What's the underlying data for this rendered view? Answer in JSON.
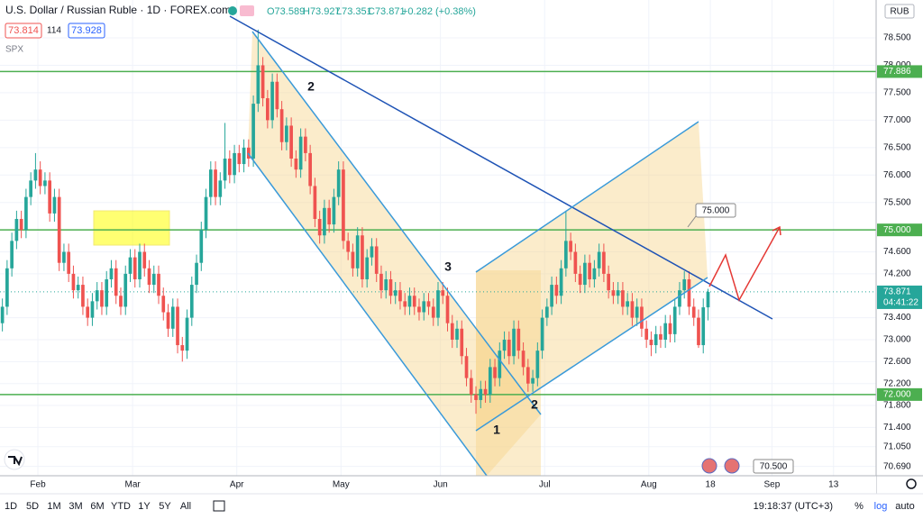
{
  "header": {
    "symbol": "U.S. Dollar / Russian Ruble · 1D · FOREX.com",
    "ohlc": [
      "O73.589",
      "H73.927",
      "L73.351",
      "C73.871"
    ],
    "change": "+0.282 (+0.38%)",
    "bid": "73.814",
    "spread": "114",
    "ask": "73.928",
    "indicator": "SPX"
  },
  "chart_data": {
    "type": "candlestick",
    "ohlc": [
      [
        73.3,
        73.75,
        73.15,
        73.6
      ],
      [
        73.6,
        74.45,
        73.45,
        74.3
      ],
      [
        74.3,
        74.95,
        74.15,
        74.8
      ],
      [
        74.8,
        75.35,
        74.65,
        75.2
      ],
      [
        75.2,
        75.35,
        74.85,
        75.0
      ],
      [
        75.0,
        75.75,
        74.85,
        75.6
      ],
      [
        75.6,
        76.05,
        75.45,
        75.9
      ],
      [
        75.9,
        76.4,
        75.75,
        76.1
      ],
      [
        76.1,
        76.25,
        75.65,
        75.8
      ],
      [
        75.8,
        76.05,
        75.65,
        75.9
      ],
      [
        75.9,
        76.05,
        75.15,
        75.3
      ],
      [
        75.3,
        75.75,
        75.15,
        75.6
      ],
      [
        75.6,
        75.75,
        74.25,
        74.4
      ],
      [
        74.4,
        74.75,
        74.25,
        74.6
      ],
      [
        74.6,
        74.75,
        74.05,
        74.2
      ],
      [
        74.2,
        74.35,
        73.75,
        73.9
      ],
      [
        73.9,
        74.15,
        73.75,
        74.0
      ],
      [
        74.0,
        74.15,
        73.45,
        73.6
      ],
      [
        73.6,
        73.75,
        73.25,
        73.4
      ],
      [
        73.4,
        73.85,
        73.25,
        73.7
      ],
      [
        73.7,
        74.05,
        73.55,
        73.9
      ],
      [
        73.9,
        74.05,
        73.45,
        73.6
      ],
      [
        73.6,
        74.25,
        73.45,
        74.1
      ],
      [
        74.1,
        74.45,
        73.95,
        74.3
      ],
      [
        74.3,
        74.45,
        73.65,
        73.8
      ],
      [
        73.8,
        73.95,
        73.45,
        73.6
      ],
      [
        73.6,
        74.35,
        73.45,
        74.2
      ],
      [
        74.2,
        74.65,
        74.05,
        74.5
      ],
      [
        74.5,
        74.65,
        73.95,
        74.1
      ],
      [
        74.1,
        74.75,
        73.95,
        74.6
      ],
      [
        74.6,
        74.75,
        74.15,
        74.3
      ],
      [
        74.3,
        74.45,
        73.85,
        74.0
      ],
      [
        74.0,
        74.35,
        73.85,
        74.2
      ],
      [
        74.2,
        74.35,
        73.65,
        73.8
      ],
      [
        73.8,
        73.95,
        73.35,
        73.5
      ],
      [
        73.5,
        73.65,
        73.05,
        73.2
      ],
      [
        73.2,
        73.75,
        73.05,
        73.6
      ],
      [
        73.6,
        73.75,
        72.75,
        72.9
      ],
      [
        72.9,
        73.05,
        72.6,
        72.8
      ],
      [
        72.8,
        73.55,
        72.65,
        73.4
      ],
      [
        73.4,
        74.15,
        73.25,
        74.0
      ],
      [
        74.0,
        74.55,
        73.85,
        74.4
      ],
      [
        74.4,
        75.15,
        74.25,
        75.0
      ],
      [
        75.0,
        75.75,
        74.85,
        75.6
      ],
      [
        75.6,
        76.25,
        75.45,
        76.1
      ],
      [
        76.1,
        76.25,
        75.45,
        75.6
      ],
      [
        75.6,
        76.05,
        75.45,
        75.9
      ],
      [
        75.9,
        76.95,
        75.75,
        76.3
      ],
      [
        76.3,
        76.45,
        75.85,
        76.0
      ],
      [
        76.0,
        76.55,
        75.85,
        76.4
      ],
      [
        76.4,
        76.55,
        76.05,
        76.2
      ],
      [
        76.2,
        76.65,
        76.05,
        76.5
      ],
      [
        76.5,
        76.65,
        76.15,
        76.3
      ],
      [
        76.3,
        77.45,
        76.15,
        77.3
      ],
      [
        77.3,
        78.65,
        77.15,
        78.0
      ],
      [
        78.0,
        78.15,
        77.25,
        77.4
      ],
      [
        77.4,
        77.55,
        76.85,
        77.0
      ],
      [
        77.0,
        77.85,
        76.85,
        77.7
      ],
      [
        77.7,
        77.85,
        77.05,
        77.2
      ],
      [
        77.2,
        77.35,
        76.45,
        76.6
      ],
      [
        76.6,
        77.05,
        76.45,
        76.9
      ],
      [
        76.9,
        77.05,
        76.15,
        76.3
      ],
      [
        76.3,
        76.45,
        75.95,
        76.1
      ],
      [
        76.1,
        76.85,
        75.95,
        76.7
      ],
      [
        76.7,
        76.85,
        76.25,
        76.4
      ],
      [
        76.4,
        76.55,
        75.65,
        75.8
      ],
      [
        75.8,
        75.95,
        75.05,
        75.2
      ],
      [
        75.2,
        75.35,
        74.75,
        74.9
      ],
      [
        74.9,
        75.55,
        74.75,
        75.4
      ],
      [
        75.4,
        75.55,
        74.95,
        75.1
      ],
      [
        75.1,
        75.75,
        74.95,
        75.6
      ],
      [
        75.6,
        76.25,
        75.45,
        76.1
      ],
      [
        76.1,
        76.25,
        74.65,
        74.8
      ],
      [
        74.8,
        74.95,
        74.45,
        74.6
      ],
      [
        74.6,
        74.75,
        74.15,
        74.3
      ],
      [
        74.3,
        75.05,
        74.15,
        74.9
      ],
      [
        74.9,
        75.05,
        73.95,
        74.1
      ],
      [
        74.1,
        74.65,
        73.95,
        74.5
      ],
      [
        74.5,
        74.85,
        74.35,
        74.7
      ],
      [
        74.7,
        74.85,
        74.05,
        74.2
      ],
      [
        74.2,
        74.35,
        73.75,
        73.9
      ],
      [
        73.9,
        74.25,
        73.75,
        74.1
      ],
      [
        74.1,
        74.25,
        73.65,
        73.8
      ],
      [
        73.8,
        74.05,
        73.65,
        73.9
      ],
      [
        73.9,
        74.05,
        73.55,
        73.7
      ],
      [
        73.7,
        73.85,
        73.45,
        73.6
      ],
      [
        73.6,
        73.95,
        73.45,
        73.8
      ],
      [
        73.8,
        73.95,
        73.45,
        73.6
      ],
      [
        73.6,
        73.75,
        73.35,
        73.5
      ],
      [
        73.5,
        73.85,
        73.35,
        73.7
      ],
      [
        73.7,
        73.85,
        73.45,
        73.6
      ],
      [
        73.6,
        73.75,
        73.25,
        73.4
      ],
      [
        73.4,
        74.05,
        73.25,
        73.9
      ],
      [
        73.9,
        74.05,
        73.65,
        73.8
      ],
      [
        73.8,
        73.95,
        73.15,
        73.3
      ],
      [
        73.3,
        73.45,
        72.85,
        73.0
      ],
      [
        73.0,
        73.35,
        72.85,
        73.2
      ],
      [
        73.2,
        73.35,
        72.55,
        72.7
      ],
      [
        72.7,
        72.85,
        72.15,
        72.3
      ],
      [
        72.3,
        72.45,
        71.85,
        72.0
      ],
      [
        72.0,
        72.15,
        71.65,
        71.9
      ],
      [
        71.9,
        72.25,
        71.75,
        72.1
      ],
      [
        72.1,
        72.25,
        71.85,
        72.0
      ],
      [
        72.0,
        72.65,
        71.85,
        72.5
      ],
      [
        72.5,
        72.65,
        72.15,
        72.3
      ],
      [
        72.3,
        72.95,
        72.15,
        72.8
      ],
      [
        72.8,
        73.15,
        72.65,
        73.0
      ],
      [
        73.0,
        73.15,
        72.55,
        72.7
      ],
      [
        72.7,
        73.35,
        72.55,
        73.2
      ],
      [
        73.2,
        73.35,
        72.65,
        72.8
      ],
      [
        72.8,
        72.95,
        72.35,
        72.5
      ],
      [
        72.5,
        72.65,
        72.05,
        72.2
      ],
      [
        72.2,
        72.45,
        72.05,
        72.3
      ],
      [
        72.3,
        72.95,
        72.15,
        72.8
      ],
      [
        72.8,
        73.55,
        72.65,
        73.4
      ],
      [
        73.4,
        73.75,
        73.25,
        73.6
      ],
      [
        73.6,
        74.15,
        73.45,
        74.0
      ],
      [
        74.0,
        74.15,
        73.65,
        73.8
      ],
      [
        73.8,
        74.45,
        73.65,
        74.3
      ],
      [
        74.3,
        75.35,
        74.15,
        74.8
      ],
      [
        74.8,
        74.95,
        74.45,
        74.6
      ],
      [
        74.6,
        74.75,
        74.05,
        74.2
      ],
      [
        74.2,
        74.35,
        73.85,
        74.0
      ],
      [
        74.0,
        74.55,
        73.85,
        74.4
      ],
      [
        74.4,
        74.55,
        73.95,
        74.1
      ],
      [
        74.1,
        74.45,
        73.95,
        74.3
      ],
      [
        74.3,
        74.75,
        74.15,
        74.6
      ],
      [
        74.6,
        74.75,
        74.05,
        74.2
      ],
      [
        74.2,
        74.35,
        73.75,
        73.9
      ],
      [
        73.9,
        74.05,
        73.65,
        73.8
      ],
      [
        73.8,
        74.05,
        73.65,
        73.9
      ],
      [
        73.9,
        74.05,
        73.45,
        73.6
      ],
      [
        73.6,
        73.85,
        73.45,
        73.7
      ],
      [
        73.7,
        73.85,
        73.25,
        73.4
      ],
      [
        73.4,
        73.75,
        73.25,
        73.6
      ],
      [
        73.6,
        73.75,
        73.05,
        73.2
      ],
      [
        73.2,
        73.35,
        72.85,
        73.0
      ],
      [
        73.0,
        73.15,
        72.7,
        72.9
      ],
      [
        72.9,
        73.25,
        72.75,
        73.1
      ],
      [
        73.1,
        73.25,
        72.85,
        73.0
      ],
      [
        73.0,
        73.45,
        72.85,
        73.3
      ],
      [
        73.3,
        73.45,
        72.95,
        73.1
      ],
      [
        73.1,
        73.75,
        72.95,
        73.6
      ],
      [
        73.6,
        74.05,
        73.45,
        73.9
      ],
      [
        73.9,
        74.25,
        73.75,
        74.1
      ],
      [
        74.1,
        74.25,
        73.45,
        73.6
      ],
      [
        73.6,
        73.75,
        73.25,
        73.4
      ],
      [
        73.4,
        73.55,
        72.85,
        72.9
      ],
      [
        72.9,
        73.75,
        72.75,
        73.589
      ],
      [
        73.589,
        73.927,
        73.351,
        73.871
      ]
    ],
    "xlim": [
      0,
      185
    ],
    "xticks": [
      {
        "value": 8,
        "label": "Feb"
      },
      {
        "value": 28,
        "label": "Mar"
      },
      {
        "value": 50,
        "label": "Apr"
      },
      {
        "value": 72,
        "label": "May"
      },
      {
        "value": 93,
        "label": "Jun"
      },
      {
        "value": 115,
        "label": "Jul"
      },
      {
        "value": 137,
        "label": "Aug"
      },
      {
        "value": 150,
        "label": "18"
      },
      {
        "value": 163,
        "label": "Sep"
      },
      {
        "value": 176,
        "label": "13"
      }
    ],
    "ylim": [
      70.52,
      79.19
    ],
    "yticks": [
      {
        "value": 78.5,
        "label": "78.500"
      },
      {
        "value": 78,
        "label": "78.000"
      },
      {
        "value": 77.5,
        "label": "77.500"
      },
      {
        "value": 77,
        "label": "77.000"
      },
      {
        "value": 76.5,
        "label": "76.500"
      },
      {
        "value": 76,
        "label": "76.000"
      },
      {
        "value": 75.5,
        "label": "75.500"
      },
      {
        "value": 74.6,
        "label": "74.600"
      },
      {
        "value": 74.2,
        "label": "74.200"
      },
      {
        "value": 73.4,
        "label": "73.400"
      },
      {
        "value": 73,
        "label": "73.000"
      },
      {
        "value": 72.6,
        "label": "72.600"
      },
      {
        "value": 72.2,
        "label": "72.200"
      },
      {
        "value": 71.8,
        "label": "71.800"
      },
      {
        "value": 71.4,
        "label": "71.400"
      },
      {
        "value": 71.05,
        "label": "71.050"
      },
      {
        "value": 70.69,
        "label": "70.690"
      }
    ],
    "grid": true,
    "up_color": "#26a69a",
    "down_color": "#ef5350",
    "levels": [
      77.886,
      75,
      72
    ],
    "level_labels": [
      "77.886",
      "75.000",
      "72.000"
    ],
    "level_color": "#4caf50",
    "last_price": 73.871,
    "last_price_label": "73.871",
    "countdown": "04:41:22",
    "currency": "RUB",
    "annotations": [
      "2",
      "3",
      "2",
      "1"
    ],
    "callouts": [
      "75.000",
      "70.500"
    ]
  },
  "toolbar": {
    "ranges": [
      "1D",
      "5D",
      "1M",
      "3M",
      "6M",
      "YTD",
      "1Y",
      "5Y",
      "All"
    ],
    "clock": "19:18:37 (UTC+3)",
    "options": [
      "%",
      "log",
      "auto"
    ]
  }
}
